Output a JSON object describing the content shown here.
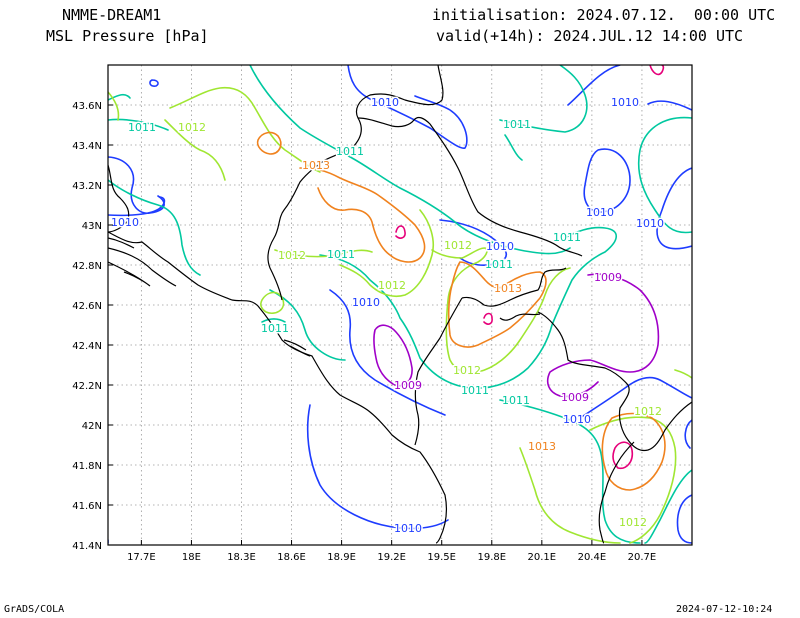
{
  "header": {
    "model": "NMME-DREAM1",
    "variable": "MSL Pressure [hPa]",
    "init": "initialisation: 2024.07.12.  00:00 UTC",
    "valid": "valid(+14h): 2024.JUL.12 14:00 UTC"
  },
  "footer": {
    "credit": "GrADS/COLA",
    "timestamp": "2024-07-12-10:24"
  },
  "map": {
    "lon_range": [
      17.5,
      21.0
    ],
    "lat_range": [
      41.4,
      43.8
    ],
    "x_ticks": [
      "17.7E",
      "18E",
      "18.3E",
      "18.6E",
      "18.9E",
      "19.2E",
      "19.5E",
      "19.8E",
      "20.1E",
      "20.4E",
      "20.7E"
    ],
    "y_ticks": [
      "41.4N",
      "41.6N",
      "41.8N",
      "42N",
      "42.2N",
      "42.4N",
      "42.6N",
      "42.8N",
      "43N",
      "43.2N",
      "43.4N",
      "43.6N"
    ],
    "grid": "dotted",
    "levels": [
      {
        "value": 1009,
        "color": "#a000c8"
      },
      {
        "value": 1010,
        "color": "#1e3cff"
      },
      {
        "value": 1011,
        "color": "#00c8a0"
      },
      {
        "value": 1012,
        "color": "#a0e632"
      },
      {
        "value": 1013,
        "color": "#f0821e"
      },
      {
        "value": 1014,
        "color": "#e6007a"
      }
    ],
    "contour_labels": [
      {
        "text": "1010",
        "level": 1010
      },
      {
        "text": "1010",
        "level": 1010
      },
      {
        "text": "1011",
        "level": 1011
      },
      {
        "text": "1012",
        "level": 1012
      },
      {
        "text": "1013",
        "level": 1013
      },
      {
        "text": "1011",
        "level": 1011
      },
      {
        "text": "1011",
        "level": 1011
      },
      {
        "text": "1010",
        "level": 1010
      },
      {
        "text": "1010",
        "level": 1010
      },
      {
        "text": "1010",
        "level": 1010
      },
      {
        "text": "1012",
        "level": 1012
      },
      {
        "text": "1011",
        "level": 1011
      },
      {
        "text": "1012",
        "level": 1012
      },
      {
        "text": "1010",
        "level": 1010
      },
      {
        "text": "1011",
        "level": 1011
      },
      {
        "text": "1011",
        "level": 1011
      },
      {
        "text": "1012",
        "level": 1012
      },
      {
        "text": "1013",
        "level": 1013
      },
      {
        "text": "1009",
        "level": 1009
      },
      {
        "text": "1010",
        "level": 1010
      },
      {
        "text": "1011",
        "level": 1011
      },
      {
        "text": "1009",
        "level": 1009
      },
      {
        "text": "1012",
        "level": 1012
      },
      {
        "text": "1011",
        "level": 1011
      },
      {
        "text": "1011",
        "level": 1011
      },
      {
        "text": "1009",
        "level": 1009
      },
      {
        "text": "1010",
        "level": 1010
      },
      {
        "text": "1012",
        "level": 1012
      },
      {
        "text": "1013",
        "level": 1013
      },
      {
        "text": "1012",
        "level": 1012
      },
      {
        "text": "1010",
        "level": 1010
      }
    ]
  }
}
